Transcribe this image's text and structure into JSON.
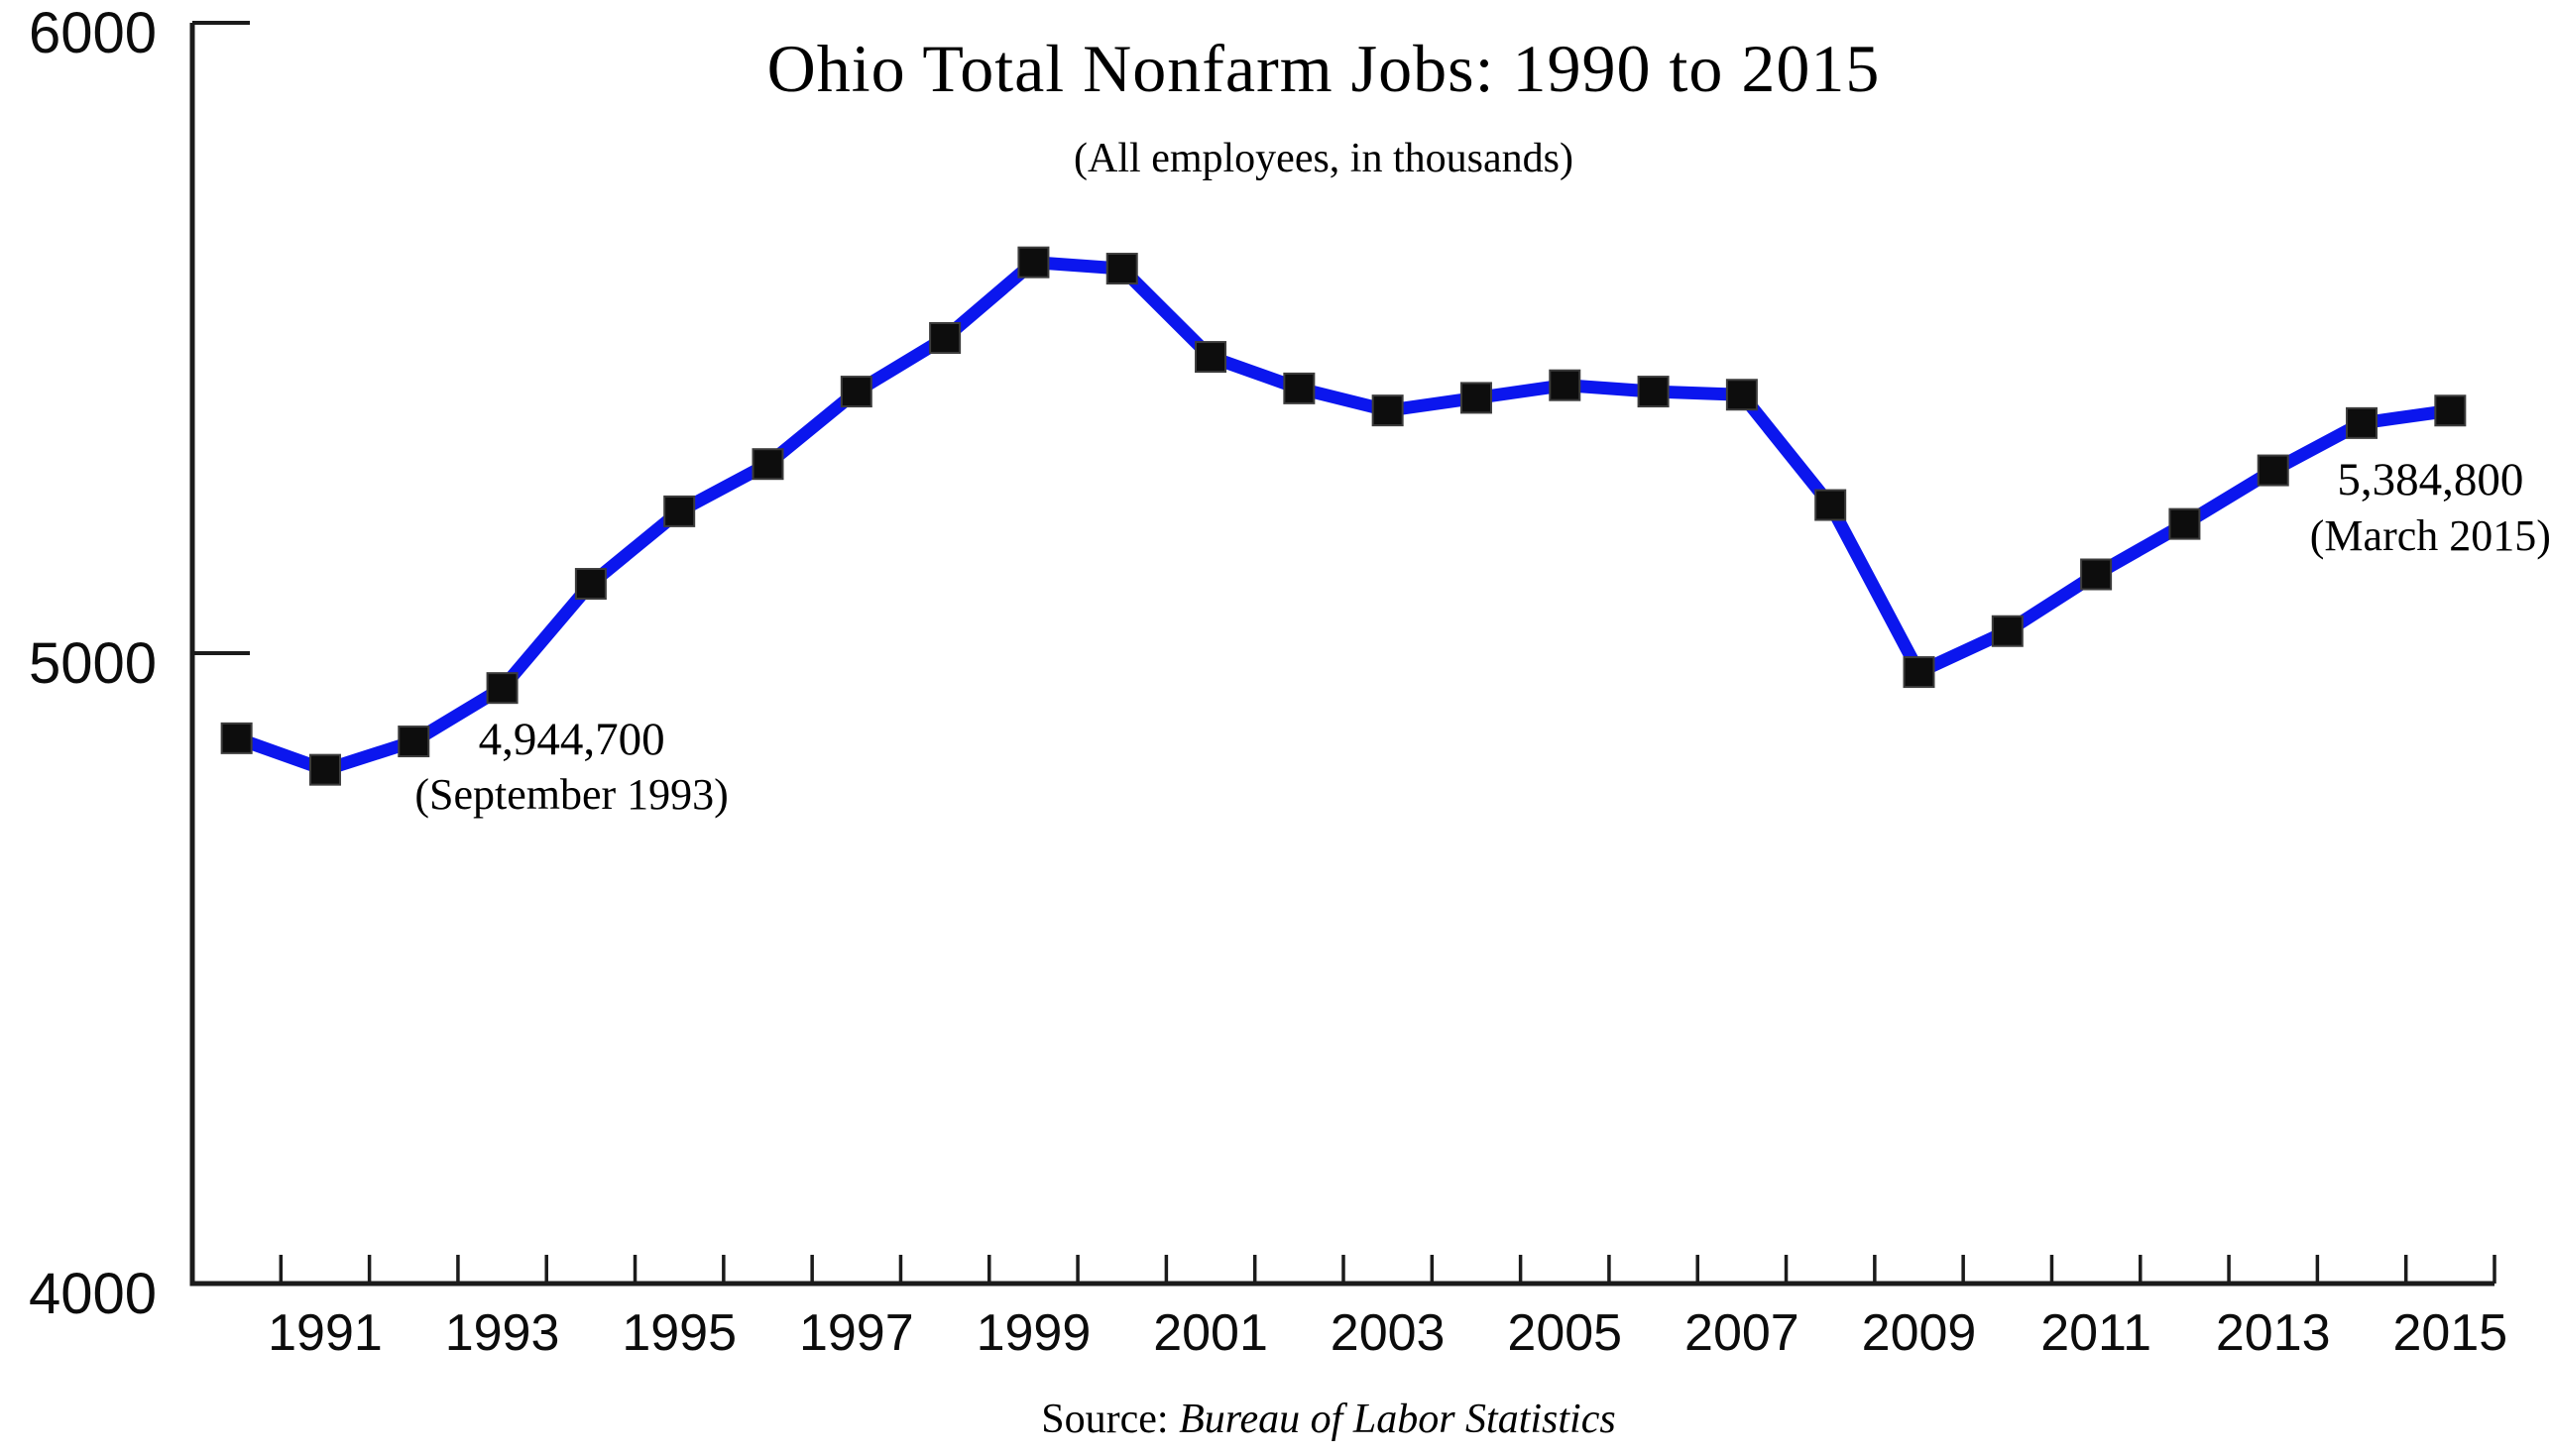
{
  "chart_data": {
    "type": "line",
    "title": "Ohio Total Nonfarm Jobs: 1990 to 2015",
    "subtitle": "(All employees, in thousands)",
    "x": [
      1990,
      1991,
      1992,
      1993,
      1994,
      1995,
      1996,
      1997,
      1998,
      1999,
      2000,
      2001,
      2002,
      2003,
      2004,
      2005,
      2006,
      2007,
      2008,
      2009,
      2010,
      2011,
      2012,
      2013,
      2014,
      2015
    ],
    "series": [
      {
        "name": "Ohio total nonfarm jobs (all employees, thousands)",
        "values": [
          4865,
          4815,
          4860,
          4944.7,
          5110,
          5225,
          5300,
          5415,
          5500,
          5620,
          5610,
          5470,
          5420,
          5385,
          5405,
          5425,
          5415,
          5410,
          5235,
          4970,
          5035,
          5125,
          5205,
          5290,
          5365,
          5384.8
        ]
      }
    ],
    "ylim": [
      4000,
      6000
    ],
    "yticks": [
      4000,
      5000,
      6000
    ],
    "ytick_labels": [
      "4000",
      "5000",
      "6000"
    ],
    "labeled_years": [
      1991,
      1993,
      1995,
      1997,
      1999,
      2001,
      2003,
      2005,
      2007,
      2009,
      2011,
      2013,
      2015
    ],
    "grid": false,
    "legend": "none",
    "marker": "square",
    "annotations": [
      {
        "value_label": "4,944,700",
        "period_label": "(September 1993)",
        "year": 1993,
        "value": 4944.7
      },
      {
        "value_label": "5,384,800",
        "period_label": "(March 2015)",
        "year": 2015,
        "value": 5384.8
      }
    ],
    "source": {
      "prefix": "Source: ",
      "name": "Bureau of Labor Statistics"
    },
    "colors": {
      "line": "#0b16ee",
      "marker_fill": "#0d0d0d",
      "marker_stroke": "#3c3c3c",
      "axis": "#1b1b1b",
      "text": "#000000",
      "background": "#ffffff"
    }
  }
}
